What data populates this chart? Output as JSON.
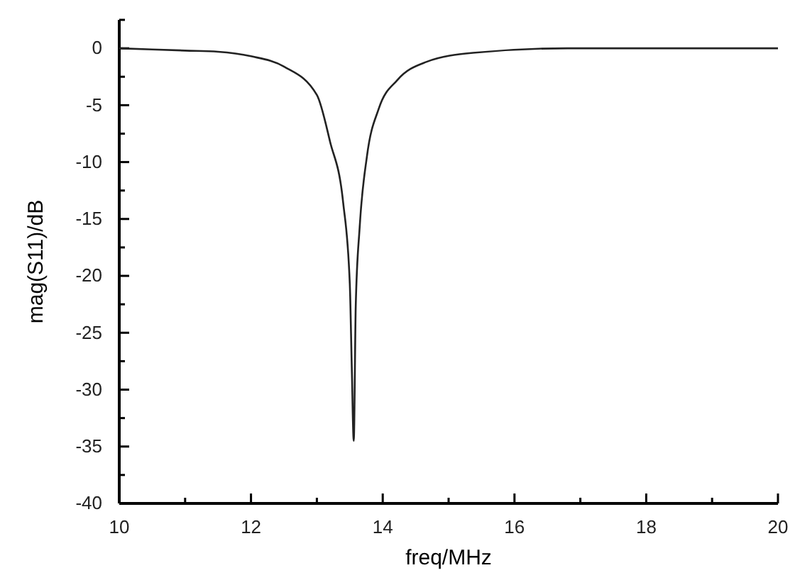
{
  "chart_data": {
    "type": "line",
    "xlabel": "freq/MHz",
    "ylabel": "mag(S11)/dB",
    "x": [
      10,
      11,
      11.5,
      12,
      12.5,
      13,
      13.2,
      13.4,
      13.5,
      13.53,
      13.56,
      13.59,
      13.65,
      13.76,
      13.94,
      14.22,
      14.66,
      15.37,
      16.8,
      18,
      20
    ],
    "series": [
      {
        "color": "#222222",
        "values": [
          0,
          -0.2,
          -0.3,
          -0.7,
          -1.6,
          -4.1,
          -8.2,
          -13.6,
          -20.7,
          -28,
          -34.5,
          -22.7,
          -15.7,
          -9.5,
          -5.3,
          -2.8,
          -1.2,
          -0.4,
          0,
          0,
          0
        ]
      }
    ],
    "xlim": [
      10,
      20
    ],
    "ylim": [
      -40,
      2.5
    ],
    "xticks": [
      10,
      {
        "value": 11,
        "label": null
      },
      12,
      {
        "value": 13,
        "label": null
      },
      14,
      {
        "value": 15,
        "label": null
      },
      16,
      {
        "value": 17,
        "label": null
      },
      18,
      {
        "value": 19,
        "label": null
      },
      20
    ],
    "yticks": [
      -40,
      {
        "value": -37.5,
        "label": null
      },
      -35,
      {
        "value": -32.5,
        "label": null
      },
      -30,
      {
        "value": -27.5,
        "label": null
      },
      -25,
      {
        "value": -22.5,
        "label": null
      },
      -20,
      {
        "value": -17.5,
        "label": null
      },
      -15,
      {
        "value": -12.5,
        "label": null
      },
      -10,
      {
        "value": -7.5,
        "label": null
      },
      -5,
      {
        "value": -2.5,
        "label": null
      },
      0,
      {
        "value": 2.5,
        "label": null
      }
    ],
    "marker": "none",
    "line_style": "solid"
  }
}
